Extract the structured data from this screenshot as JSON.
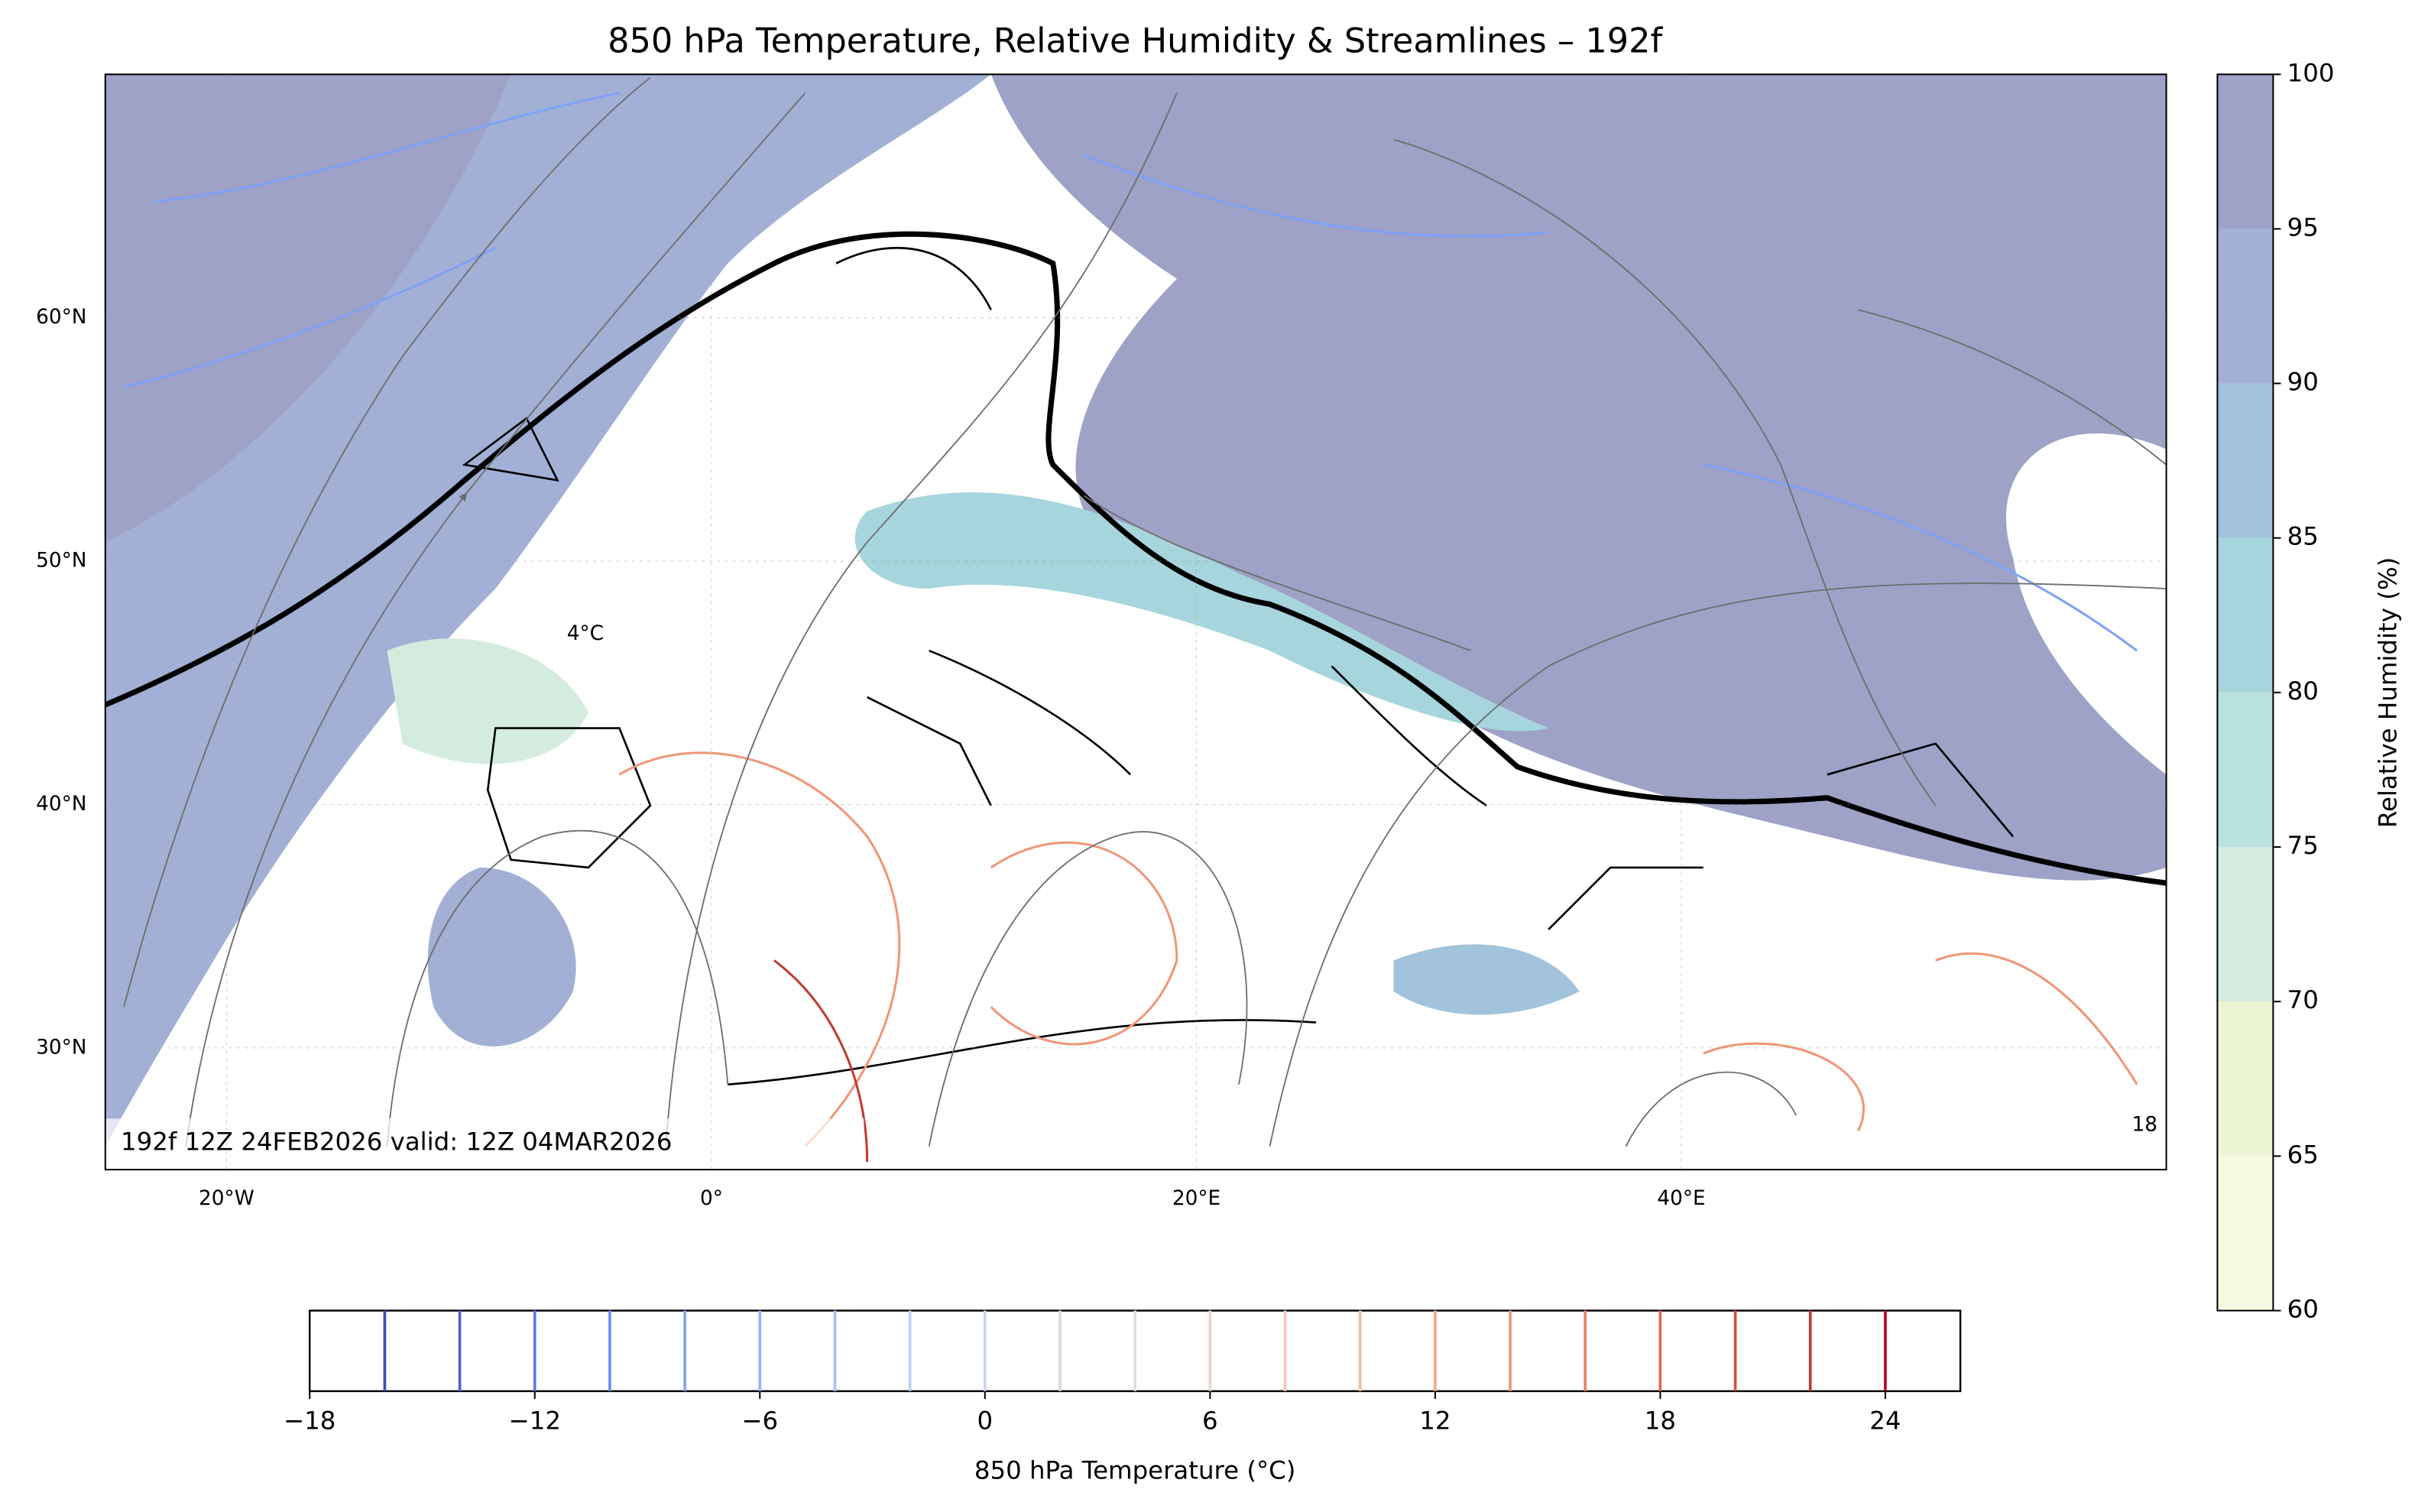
{
  "title": "850 hPa Temperature, Relative Humidity & Streamlines – 192f",
  "annotation": "192f 12Z 24FEB2026 valid: 12Z 04MAR2026",
  "map": {
    "lonlim": [
      -25,
      60
    ],
    "latlim": [
      25,
      70
    ],
    "lon_ticks": [
      {
        "value": -20,
        "label": "20°W"
      },
      {
        "value": 0,
        "label": "0°"
      },
      {
        "value": 20,
        "label": "20°E"
      },
      {
        "value": 40,
        "label": "40°E"
      }
    ],
    "lat_ticks": [
      {
        "value": 30,
        "label": "30°N"
      },
      {
        "value": 40,
        "label": "40°N"
      },
      {
        "value": 50,
        "label": "50°N"
      },
      {
        "value": 60,
        "label": "60°N"
      }
    ],
    "contour_labels": [
      "4°C",
      "18"
    ]
  },
  "rh_colorbar": {
    "label": "Relative Humidity (%)",
    "lim": [
      60,
      100
    ],
    "ticks": [
      60,
      65,
      70,
      75,
      80,
      85,
      90,
      95,
      100
    ],
    "colors": [
      "#f6fae0",
      "#ebf5d3",
      "#d4ecde",
      "#b9e1dd",
      "#a6d5dd",
      "#a2c3dc",
      "#a2b0d6",
      "#9da2c6"
    ]
  },
  "temp_colorbar": {
    "label": "850 hPa Temperature (°C)",
    "lim": [
      -18,
      26
    ],
    "ticks": [
      {
        "value": -18,
        "label": "−18"
      },
      {
        "value": -12,
        "label": "−12"
      },
      {
        "value": -6,
        "label": "−6"
      },
      0,
      6,
      12,
      18,
      24
    ],
    "levels": [
      -16,
      -14,
      -12,
      -10,
      -8,
      -6,
      -4,
      -2,
      0,
      2,
      4,
      6,
      8,
      10,
      12,
      14,
      16,
      18,
      20,
      22,
      24
    ],
    "colors": [
      "#3b4cc0",
      "#4a63d3",
      "#5b7be1",
      "#6c8ff0",
      "#7fa2f8",
      "#92b3fd",
      "#a5c1fd",
      "#b8cef8",
      "#c8d5ee",
      "#d5dbe3",
      "#dddddd",
      "#ead4c8",
      "#f2cab5",
      "#f5bba0",
      "#f4aa8a",
      "#f09676",
      "#e88163",
      "#de6a51",
      "#d0523f",
      "#c13a31",
      "#b40426"
    ]
  }
}
